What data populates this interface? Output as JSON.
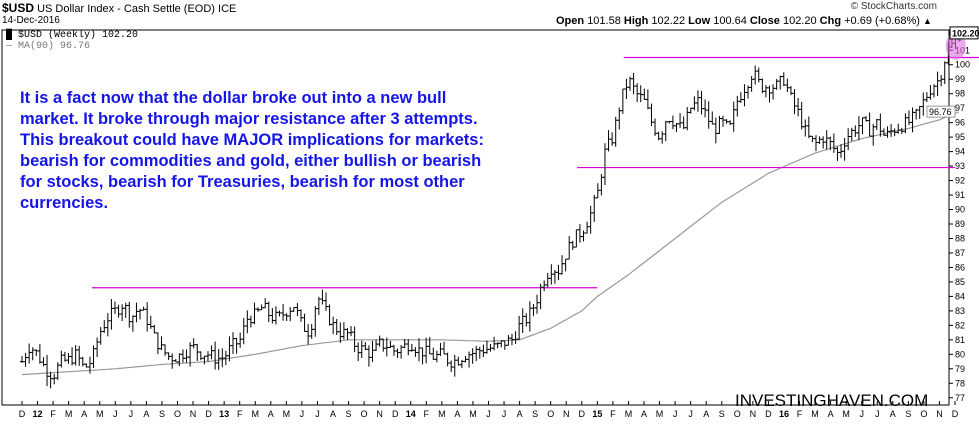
{
  "header": {
    "symbol": "$USD",
    "description": "US Dollar Index - Cash Settle (EOD)",
    "exchange": "ICE",
    "date": "14-Dec-2016",
    "logo": "© StockCharts.com",
    "open_label": "Open",
    "open": "101.58",
    "high_label": "High",
    "high": "102.22",
    "low_label": "Low",
    "low": "100.64",
    "close_label": "Close",
    "close": "102.20",
    "chg_label": "Chg",
    "chg": "+0.69 (+0.68%)",
    "up_icon": "triangle-up-icon"
  },
  "legend": {
    "main": "$USD (Weekly) 102.20",
    "ma": "MA(90) 96.76"
  },
  "annotation": "It is a fact now that the dollar broke out into a new bull market. It broke through major resistance after 3 attempts. This breakout could have MAJOR implications for markets: bearish for commodities and gold, either bullish or bearish for stocks, bearish for Treasuries, bearish for most other currencies.",
  "watermark": "INVESTINGHAVEN.COM",
  "colors": {
    "annotation": "#1515e6",
    "resistance_line": "#d400d4",
    "ma_line": "#999999",
    "highlight": "#e070e0",
    "price": "#000000"
  },
  "chart_data": {
    "type": "bar",
    "title": "$USD US Dollar Index - Cash Settle (EOD)",
    "period": "weekly",
    "ylim": [
      76.5,
      102.4
    ],
    "y_ticks": [
      77,
      78,
      79,
      80,
      81,
      82,
      83,
      84,
      85,
      86,
      87,
      88,
      89,
      90,
      91,
      92,
      93,
      94,
      95,
      96,
      97,
      98,
      99,
      100,
      101
    ],
    "last_price_label": "102.20",
    "ma_value_label": "96.76",
    "x_ticks": [
      {
        "label": "D",
        "t": 0.0
      },
      {
        "label": "12",
        "t": 1.0,
        "bold": true
      },
      {
        "label": "F",
        "t": 2.0
      },
      {
        "label": "M",
        "t": 3.0
      },
      {
        "label": "A",
        "t": 4.0
      },
      {
        "label": "M",
        "t": 5.0
      },
      {
        "label": "J",
        "t": 6.0
      },
      {
        "label": "J",
        "t": 7.0
      },
      {
        "label": "A",
        "t": 8.0
      },
      {
        "label": "S",
        "t": 9.0
      },
      {
        "label": "O",
        "t": 10.0
      },
      {
        "label": "N",
        "t": 11.0
      },
      {
        "label": "D",
        "t": 12.0
      },
      {
        "label": "13",
        "t": 13.0,
        "bold": true
      },
      {
        "label": "F",
        "t": 14.0
      },
      {
        "label": "M",
        "t": 15.0
      },
      {
        "label": "A",
        "t": 16.0
      },
      {
        "label": "M",
        "t": 17.0
      },
      {
        "label": "J",
        "t": 18.0
      },
      {
        "label": "J",
        "t": 19.0
      },
      {
        "label": "A",
        "t": 20.0
      },
      {
        "label": "S",
        "t": 21.0
      },
      {
        "label": "O",
        "t": 22.0
      },
      {
        "label": "N",
        "t": 23.0
      },
      {
        "label": "D",
        "t": 24.0
      },
      {
        "label": "14",
        "t": 25.0,
        "bold": true
      },
      {
        "label": "F",
        "t": 26.0
      },
      {
        "label": "M",
        "t": 27.0
      },
      {
        "label": "A",
        "t": 28.0
      },
      {
        "label": "M",
        "t": 29.0
      },
      {
        "label": "J",
        "t": 30.0
      },
      {
        "label": "J",
        "t": 31.0
      },
      {
        "label": "A",
        "t": 32.0
      },
      {
        "label": "S",
        "t": 33.0
      },
      {
        "label": "O",
        "t": 34.0
      },
      {
        "label": "N",
        "t": 35.0
      },
      {
        "label": "D",
        "t": 36.0
      },
      {
        "label": "15",
        "t": 37.0,
        "bold": true
      },
      {
        "label": "F",
        "t": 38.0
      },
      {
        "label": "M",
        "t": 39.0
      },
      {
        "label": "A",
        "t": 40.0
      },
      {
        "label": "M",
        "t": 41.0
      },
      {
        "label": "J",
        "t": 42.0
      },
      {
        "label": "J",
        "t": 43.0
      },
      {
        "label": "A",
        "t": 44.0
      },
      {
        "label": "S",
        "t": 45.0
      },
      {
        "label": "O",
        "t": 46.0
      },
      {
        "label": "N",
        "t": 47.0
      },
      {
        "label": "D",
        "t": 48.0
      },
      {
        "label": "16",
        "t": 49.0,
        "bold": true
      },
      {
        "label": "F",
        "t": 50.0
      },
      {
        "label": "M",
        "t": 51.0
      },
      {
        "label": "A",
        "t": 52.0
      },
      {
        "label": "M",
        "t": 53.0
      },
      {
        "label": "J",
        "t": 54.0
      },
      {
        "label": "J",
        "t": 55.0
      },
      {
        "label": "A",
        "t": 56.0
      },
      {
        "label": "S",
        "t": 57.0
      },
      {
        "label": "O",
        "t": 58.0
      },
      {
        "label": "N",
        "t": 59.0
      },
      {
        "label": "D",
        "t": 60.0
      }
    ],
    "resistance_lines": [
      {
        "from": 4.5,
        "to": 37.0,
        "y": 84.6
      },
      {
        "from": 35.7,
        "to": 60.0,
        "y": 92.9
      },
      {
        "from": 38.7,
        "to": 61.6,
        "y": 100.5
      }
    ],
    "close_anchors": [
      [
        0,
        79.5
      ],
      [
        0.5,
        80.6
      ],
      [
        1,
        80.0
      ],
      [
        1.5,
        79.0
      ],
      [
        2,
        78.5
      ],
      [
        2.5,
        79.5
      ],
      [
        3,
        79.6
      ],
      [
        3.5,
        80.0
      ],
      [
        4,
        79.0
      ],
      [
        4.5,
        79.6
      ],
      [
        5,
        81.5
      ],
      [
        5.5,
        82.5
      ],
      [
        6,
        83.0
      ],
      [
        6.5,
        83.5
      ],
      [
        7,
        82.5
      ],
      [
        7.5,
        83.2
      ],
      [
        8,
        82.5
      ],
      [
        8.5,
        81.2
      ],
      [
        9,
        80.3
      ],
      [
        9.5,
        79.8
      ],
      [
        10,
        79.8
      ],
      [
        10.5,
        80.2
      ],
      [
        11,
        80.5
      ],
      [
        11.5,
        80.1
      ],
      [
        12,
        80.0
      ],
      [
        12.5,
        79.7
      ],
      [
        13,
        79.8
      ],
      [
        13.5,
        80.6
      ],
      [
        14,
        80.9
      ],
      [
        14.5,
        82.5
      ],
      [
        15,
        82.7
      ],
      [
        15.5,
        83.3
      ],
      [
        16,
        82.6
      ],
      [
        16.5,
        82.5
      ],
      [
        17,
        83.0
      ],
      [
        17.5,
        83.4
      ],
      [
        18,
        82.0
      ],
      [
        18.5,
        81.5
      ],
      [
        19,
        84.0
      ],
      [
        19.5,
        83.0
      ],
      [
        20,
        82.0
      ],
      [
        20.5,
        81.5
      ],
      [
        21,
        81.4
      ],
      [
        21.5,
        80.5
      ],
      [
        22,
        80.3
      ],
      [
        22.5,
        80.0
      ],
      [
        23,
        80.7
      ],
      [
        23.5,
        80.6
      ],
      [
        24,
        80.2
      ],
      [
        24.5,
        80.5
      ],
      [
        25,
        80.8
      ],
      [
        25.5,
        80.3
      ],
      [
        26,
        80.1
      ],
      [
        26.5,
        79.8
      ],
      [
        27,
        80.0
      ],
      [
        27.5,
        79.5
      ],
      [
        28,
        79.6
      ],
      [
        28.5,
        80.0
      ],
      [
        29,
        80.1
      ],
      [
        29.5,
        80.3
      ],
      [
        30,
        80.4
      ],
      [
        30.5,
        80.5
      ],
      [
        31,
        80.8
      ],
      [
        31.5,
        81.0
      ],
      [
        32,
        82.0
      ],
      [
        32.5,
        82.5
      ],
      [
        33,
        83.5
      ],
      [
        33.5,
        85.0
      ],
      [
        34,
        86.0
      ],
      [
        34.5,
        85.8
      ],
      [
        35,
        87.0
      ],
      [
        35.5,
        88.0
      ],
      [
        36,
        88.5
      ],
      [
        36.5,
        89.5
      ],
      [
        37,
        91.0
      ],
      [
        37.5,
        94.0
      ],
      [
        38,
        95.0
      ],
      [
        38.5,
        97.5
      ],
      [
        39,
        99.0
      ],
      [
        39.5,
        98.0
      ],
      [
        40,
        97.5
      ],
      [
        40.5,
        96.0
      ],
      [
        41,
        95.0
      ],
      [
        41.5,
        96.5
      ],
      [
        42,
        96.0
      ],
      [
        42.5,
        95.5
      ],
      [
        43,
        97.0
      ],
      [
        43.5,
        97.5
      ],
      [
        44,
        96.5
      ],
      [
        44.5,
        95.5
      ],
      [
        45,
        96.0
      ],
      [
        45.5,
        95.5
      ],
      [
        46,
        97.5
      ],
      [
        46.5,
        98.5
      ],
      [
        47,
        99.5
      ],
      [
        47.5,
        98.5
      ],
      [
        48,
        98.5
      ],
      [
        48.5,
        98.5
      ],
      [
        49,
        99.0
      ],
      [
        49.5,
        97.5
      ],
      [
        50,
        96.5
      ],
      [
        50.5,
        95.0
      ],
      [
        51,
        94.5
      ],
      [
        51.5,
        95.0
      ],
      [
        52,
        94.5
      ],
      [
        52.5,
        93.8
      ],
      [
        53,
        95.0
      ],
      [
        53.5,
        95.5
      ],
      [
        54,
        96.0
      ],
      [
        54.5,
        95.5
      ],
      [
        55,
        96.0
      ],
      [
        55.5,
        95.0
      ],
      [
        56,
        95.5
      ],
      [
        56.5,
        95.8
      ],
      [
        57,
        96.0
      ],
      [
        57.5,
        96.5
      ],
      [
        58,
        97.5
      ],
      [
        58.5,
        98.5
      ],
      [
        59,
        99.0
      ],
      [
        59.5,
        101.0
      ],
      [
        60,
        101.6
      ],
      [
        60.3,
        102.2
      ]
    ],
    "ma_anchors": [
      [
        0,
        78.6
      ],
      [
        3,
        78.8
      ],
      [
        6,
        79.0
      ],
      [
        9,
        79.3
      ],
      [
        12,
        79.5
      ],
      [
        15,
        80.0
      ],
      [
        18,
        80.6
      ],
      [
        21,
        81.0
      ],
      [
        24,
        81.0
      ],
      [
        27,
        81.0
      ],
      [
        30,
        80.9
      ],
      [
        32,
        81.0
      ],
      [
        34,
        81.8
      ],
      [
        36,
        83.0
      ],
      [
        37,
        84.0
      ],
      [
        39,
        85.5
      ],
      [
        42,
        88.0
      ],
      [
        45,
        90.5
      ],
      [
        48,
        92.5
      ],
      [
        51,
        93.9
      ],
      [
        54,
        94.9
      ],
      [
        57,
        95.6
      ],
      [
        59,
        96.2
      ],
      [
        60.3,
        96.76
      ]
    ]
  }
}
